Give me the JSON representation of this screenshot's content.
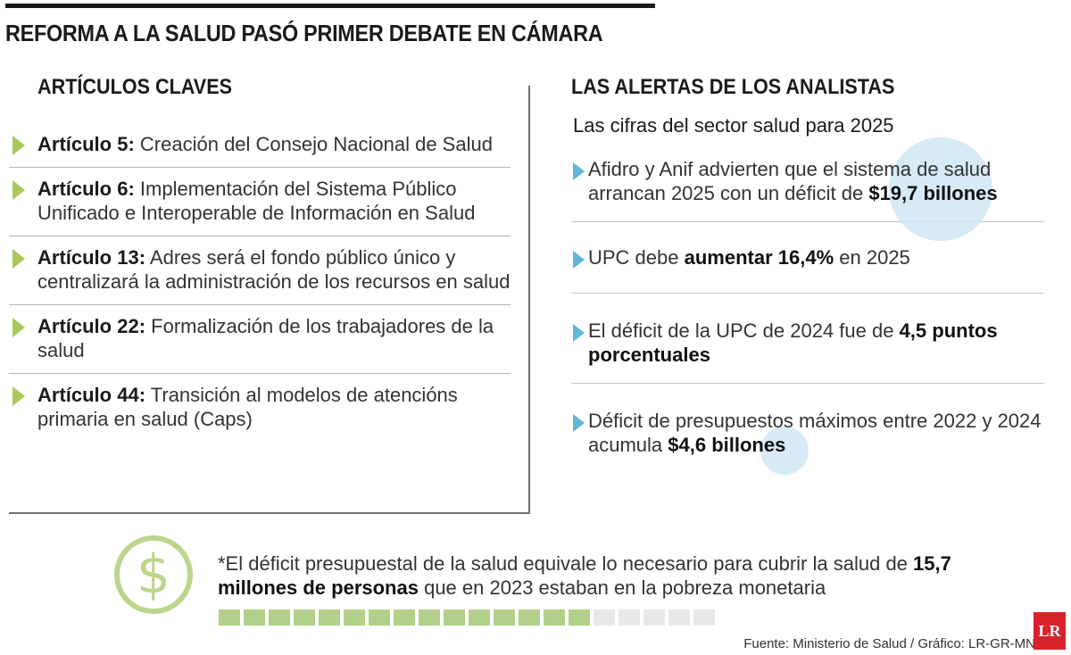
{
  "title": "REFORMA A LA SALUD PASÓ PRIMER DEBATE EN CÁMARA",
  "left": {
    "heading": "ARTÍCULOS CLAVES",
    "items": [
      {
        "label": "Artículo 5:",
        "text": " Creación del Consejo Nacional de Salud"
      },
      {
        "label": "Artículo 6:",
        "text": " Implementación del Sistema Público Unificado e Interoperable de Información en Salud"
      },
      {
        "label": "Artículo 13:",
        "text": " Adres será el fondo público único y centralizará la administración de los recursos en salud"
      },
      {
        "label": "Artículo 22:",
        "text": " Formalización de los trabajadores de la salud"
      },
      {
        "label": "Artículo 44:",
        "text": " Transición al modelos de atencións primaria en salud (Caps)"
      }
    ]
  },
  "right": {
    "heading": "LAS ALERTAS DE LOS ANALISTAS",
    "subheading": "Las cifras del sector salud para 2025",
    "items": [
      {
        "pre": "Afidro y Anif advierten que el sistema de salud arrancan 2025 con un déficit de ",
        "bold": "$19,7 billones",
        "post": ""
      },
      {
        "pre": "UPC debe ",
        "bold": "aumentar 16,4%",
        "post": " en 2025"
      },
      {
        "pre": "El déficit de la UPC de 2024 fue de ",
        "bold": "4,5 puntos porcentuales",
        "post": ""
      },
      {
        "pre": "Déficit de presupuestos máximos entre 2022 y 2024 acumula ",
        "bold": "$4,6 billones",
        "post": ""
      }
    ]
  },
  "footnote": {
    "pre": "*El déficit presupuestal de la salud equivale lo necesario para cubrir la salud de ",
    "bold": "15,7 millones de personas",
    "post": " que en 2023 estaban en la pobreza monetaria"
  },
  "progress": {
    "filled": 15,
    "total": 20
  },
  "icons": {
    "dollar": "dollar-circle-icon",
    "logo": "lr-logo"
  },
  "dollar_glyph": "$",
  "logo_text": "LR",
  "source": "Fuente: Ministerio de Salud / Gráfico: LR-GR-MN",
  "colors": {
    "green_accent": "#a9c95a",
    "blue_accent": "#5fb8d8",
    "bubble": "#cfe8f3",
    "logo_red": "#d8232a"
  }
}
